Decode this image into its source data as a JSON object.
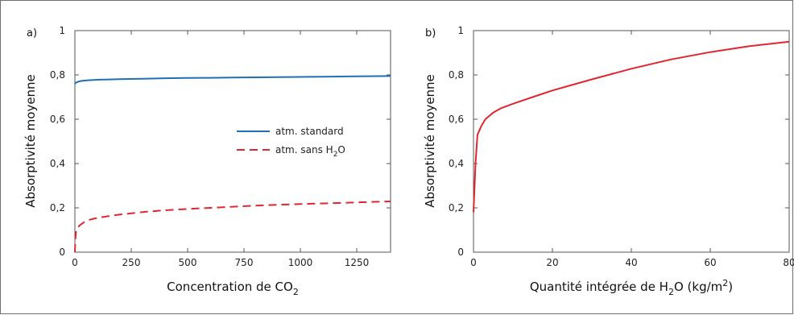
{
  "chart_data": [
    {
      "type": "line",
      "panel_label": "a)",
      "xlabel": "Concentration de CO",
      "xlabel_sub": "2",
      "ylabel": "Absorptivité moyenne",
      "xlim": [
        0,
        1400
      ],
      "ylim": [
        0,
        1
      ],
      "xticks": [
        0,
        250,
        500,
        750,
        1000,
        1250
      ],
      "xtick_labels": [
        "0",
        "250",
        "500",
        "750",
        "1000",
        "1250"
      ],
      "yticks": [
        0,
        0.2,
        0.4,
        0.6,
        0.8,
        1
      ],
      "ytick_labels": [
        "0",
        "0,2",
        "0,4",
        "0,6",
        "0,8",
        "1"
      ],
      "legend": "center-right",
      "grid": false,
      "series": [
        {
          "name": "atm. standard",
          "color": "#1f6fb4",
          "dash": "solid",
          "x": [
            0,
            5,
            15,
            30,
            60,
            100,
            200,
            300,
            400,
            500,
            600,
            700,
            800,
            900,
            1000,
            1100,
            1200,
            1300,
            1400
          ],
          "y": [
            0.76,
            0.765,
            0.77,
            0.773,
            0.776,
            0.778,
            0.781,
            0.783,
            0.785,
            0.786,
            0.787,
            0.788,
            0.789,
            0.79,
            0.791,
            0.792,
            0.793,
            0.794,
            0.795
          ]
        },
        {
          "name": "atm. sans H",
          "name_sub": "2",
          "name_tail": "O",
          "color": "#e0262f",
          "dash": "dashed",
          "x": [
            0,
            2,
            5,
            10,
            20,
            40,
            60,
            100,
            150,
            200,
            300,
            400,
            500,
            600,
            700,
            800,
            900,
            1000,
            1100,
            1200,
            1300,
            1400
          ],
          "y": [
            0.0,
            0.06,
            0.09,
            0.105,
            0.12,
            0.135,
            0.145,
            0.155,
            0.163,
            0.17,
            0.181,
            0.189,
            0.195,
            0.2,
            0.205,
            0.21,
            0.214,
            0.217,
            0.22,
            0.223,
            0.226,
            0.229
          ]
        }
      ]
    },
    {
      "type": "line",
      "panel_label": "b)",
      "xlabel": "Quantité intégrée de H",
      "xlabel_sub": "2",
      "xlabel_mid": "O (kg/m",
      "xlabel_sup": "2",
      "xlabel_tail": ")",
      "ylabel": "Absorptivité moyenne",
      "xlim": [
        0,
        80
      ],
      "ylim": [
        0,
        1
      ],
      "xticks": [
        0,
        20,
        40,
        60,
        80
      ],
      "xtick_labels": [
        "0",
        "20",
        "40",
        "60",
        "80"
      ],
      "yticks": [
        0,
        0.2,
        0.4,
        0.6,
        0.8,
        1
      ],
      "ytick_labels": [
        "0",
        "0,2",
        "0,4",
        "0,6",
        "0,8",
        "1"
      ],
      "grid": false,
      "series": [
        {
          "color": "#e0262f",
          "dash": "solid",
          "x": [
            0,
            0.5,
            1,
            2,
            3,
            5,
            7,
            10,
            15,
            20,
            25,
            30,
            40,
            50,
            60,
            70,
            80
          ],
          "y": [
            0.18,
            0.4,
            0.53,
            0.57,
            0.6,
            0.63,
            0.65,
            0.67,
            0.7,
            0.73,
            0.755,
            0.78,
            0.828,
            0.87,
            0.903,
            0.93,
            0.95
          ]
        }
      ]
    }
  ]
}
